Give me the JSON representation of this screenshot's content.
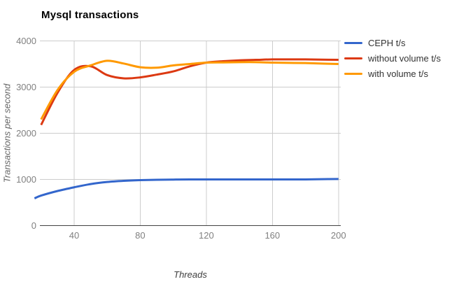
{
  "title": "Mysql transactions",
  "axes": {
    "y_tick_labels": [
      "4000",
      "3000",
      "2000",
      "1000",
      "0"
    ],
    "y_tick_values": [
      4000,
      3000,
      2000,
      1000,
      0
    ],
    "x_tick_labels": [
      "40",
      "80",
      "120",
      "160",
      "200"
    ],
    "x_tick_values": [
      40,
      80,
      120,
      160,
      200
    ]
  },
  "colors": {
    "grid": "#cccccc",
    "baseline": "#424242",
    "tick_text": "#808080",
    "series_blue": "#3366CC",
    "series_red": "#DC3912",
    "series_orange": "#FF9900"
  },
  "chart_data": {
    "type": "line",
    "curve": "smooth",
    "title": "Mysql transactions",
    "xlabel": "Threads",
    "ylabel": "Transactions per second",
    "xlim": [
      16,
      200
    ],
    "ylim": [
      0,
      4000
    ],
    "grid": true,
    "legend_position": "right",
    "x": [
      20,
      30,
      40,
      50,
      60,
      70,
      80,
      90,
      100,
      110,
      120,
      130,
      140,
      150,
      160,
      170,
      180,
      190,
      200
    ],
    "series": [
      {
        "name": "CEPH t/s",
        "color": "#3366CC",
        "x": [
          16,
          20,
          30,
          40,
          50,
          60,
          70,
          80,
          90,
          100,
          110,
          120,
          130,
          140,
          150,
          160,
          170,
          180,
          190,
          200
        ],
        "values": [
          590,
          650,
          750,
          830,
          900,
          945,
          970,
          985,
          993,
          997,
          1000,
          1000,
          1000,
          1000,
          1000,
          1000,
          1000,
          1000,
          1005,
          1010
        ]
      },
      {
        "name": "without volume t/s",
        "color": "#DC3912",
        "values": [
          2180,
          2880,
          3370,
          3450,
          3260,
          3190,
          3210,
          3270,
          3340,
          3450,
          3530,
          3560,
          3580,
          3590,
          3600,
          3600,
          3600,
          3595,
          3590
        ]
      },
      {
        "name": "with volume t/s",
        "color": "#FF9900",
        "values": [
          2300,
          2940,
          3330,
          3470,
          3570,
          3510,
          3430,
          3420,
          3470,
          3500,
          3530,
          3535,
          3540,
          3540,
          3530,
          3525,
          3520,
          3510,
          3500
        ]
      }
    ]
  }
}
